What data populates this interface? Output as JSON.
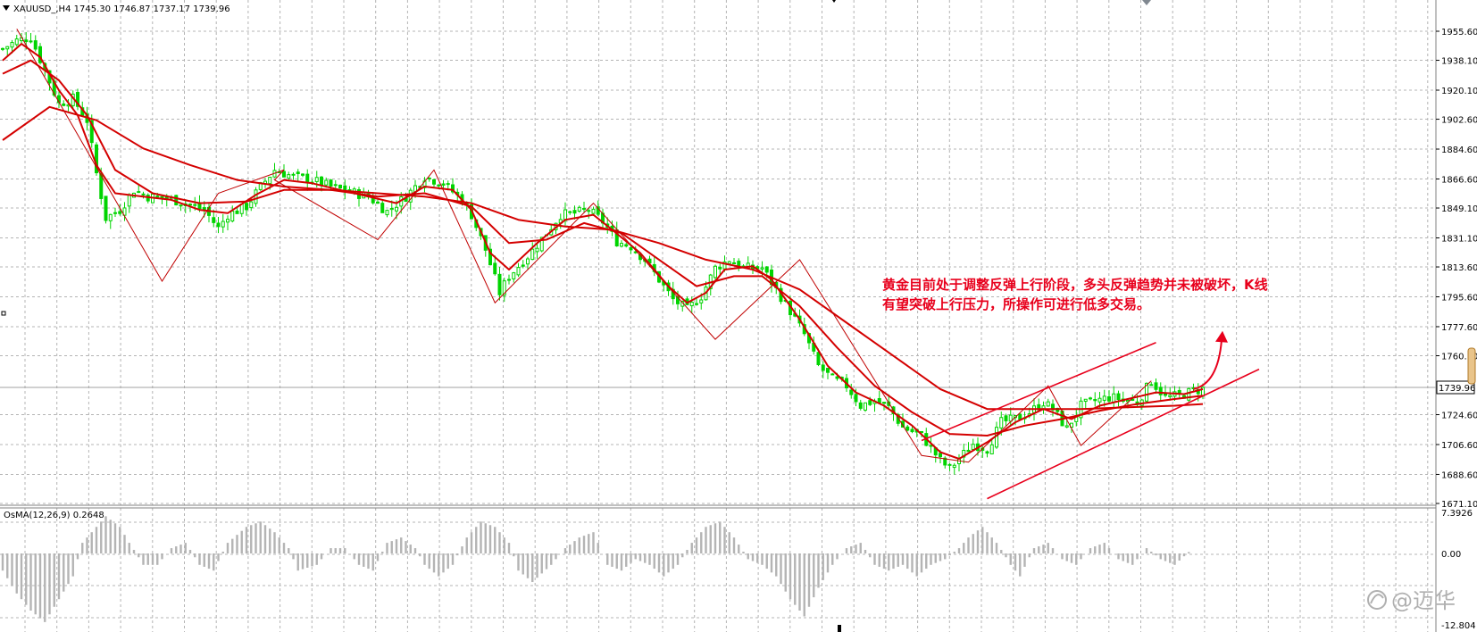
{
  "symbol_header": "XAUUSD_,H4  1745.30 1746.87 1737.17 1739.96",
  "indicator_header": "OsMA(12,26,9) 0.2648",
  "current_price_label": "1739.96",
  "annotation": {
    "line1": "黄金目前处于调整反弹上行阶段，多头反弹趋势并未被破坏，K线",
    "line2": "有望突破上行压力，所操作可进行低多交易。"
  },
  "watermark": "@迈华",
  "colors": {
    "bull": "#00d400",
    "bear": "#00d400",
    "ma": "#d40000",
    "annotation": "#e8001c",
    "grid": "#b4b4b4",
    "osma": "#b4b4b4"
  },
  "chart_data": [
    {
      "type": "candlestick",
      "title": "XAUUSD_,H4",
      "y_ticks": [
        1955.6,
        1938.1,
        1920.1,
        1902.6,
        1884.6,
        1866.6,
        1849.1,
        1831.1,
        1813.6,
        1795.6,
        1777.6,
        1760.1,
        1724.6,
        1706.6,
        1688.6,
        1671.1
      ],
      "y_tick_labels": [
        "1955.60",
        "1938.10",
        "1920.10",
        "1902.60",
        "1884.60",
        "1866.60",
        "1849.10",
        "1831.10",
        "1813.60",
        "1795.60",
        "1777.60",
        "1760.10",
        "1724.60",
        "1706.60",
        "1688.60",
        "1671.10"
      ],
      "ylim": [
        1667,
        1970
      ],
      "grid": true,
      "last_price": 1739.96,
      "close_path": [
        [
          0,
          1945
        ],
        [
          3,
          1950
        ],
        [
          6,
          1952
        ],
        [
          9,
          1932
        ],
        [
          12,
          1912
        ],
        [
          15,
          1915
        ],
        [
          18,
          1902
        ],
        [
          20,
          1870
        ],
        [
          22,
          1843
        ],
        [
          25,
          1848
        ],
        [
          28,
          1860
        ],
        [
          31,
          1856
        ],
        [
          35,
          1855
        ],
        [
          39,
          1852
        ],
        [
          43,
          1848
        ],
        [
          46,
          1837
        ],
        [
          48,
          1845
        ],
        [
          52,
          1850
        ],
        [
          55,
          1862
        ],
        [
          58,
          1872
        ],
        [
          62,
          1868
        ],
        [
          66,
          1866
        ],
        [
          70,
          1862
        ],
        [
          74,
          1859
        ],
        [
          78,
          1856
        ],
        [
          82,
          1847
        ],
        [
          86,
          1856
        ],
        [
          90,
          1868
        ],
        [
          94,
          1864
        ],
        [
          98,
          1854
        ],
        [
          100,
          1845
        ],
        [
          103,
          1824
        ],
        [
          106,
          1798
        ],
        [
          108,
          1808
        ],
        [
          112,
          1820
        ],
        [
          116,
          1834
        ],
        [
          119,
          1845
        ],
        [
          122,
          1846
        ],
        [
          125,
          1848
        ],
        [
          128,
          1841
        ],
        [
          131,
          1829
        ],
        [
          134,
          1826
        ],
        [
          137,
          1818
        ],
        [
          140,
          1806
        ],
        [
          143,
          1794
        ],
        [
          146,
          1788
        ],
        [
          149,
          1796
        ],
        [
          152,
          1813
        ],
        [
          155,
          1818
        ],
        [
          158,
          1813
        ],
        [
          162,
          1813
        ],
        [
          165,
          1800
        ],
        [
          168,
          1787
        ],
        [
          171,
          1773
        ],
        [
          174,
          1754
        ],
        [
          177,
          1746
        ],
        [
          180,
          1742
        ],
        [
          183,
          1730
        ],
        [
          186,
          1733
        ],
        [
          189,
          1729
        ],
        [
          192,
          1717
        ],
        [
          196,
          1712
        ],
        [
          200,
          1697
        ],
        [
          202,
          1692
        ],
        [
          204,
          1698
        ],
        [
          207,
          1707
        ],
        [
          210,
          1704
        ],
        [
          213,
          1720
        ],
        [
          216,
          1722
        ],
        [
          219,
          1726
        ],
        [
          222,
          1732
        ],
        [
          224,
          1728
        ],
        [
          227,
          1716
        ],
        [
          230,
          1730
        ],
        [
          233,
          1733
        ],
        [
          236,
          1735
        ],
        [
          239,
          1734
        ],
        [
          242,
          1732
        ],
        [
          245,
          1745
        ],
        [
          248,
          1735
        ],
        [
          251,
          1736
        ],
        [
          254,
          1739
        ],
        [
          256,
          1740
        ]
      ],
      "series": [
        {
          "name": "",
          "kind": "ma-fast",
          "points": [
            [
              0,
              1938
            ],
            [
              4,
              1948
            ],
            [
              8,
              1940
            ],
            [
              12,
              1920
            ],
            [
              16,
              1905
            ],
            [
              20,
              1875
            ],
            [
              24,
              1858
            ],
            [
              30,
              1856
            ],
            [
              36,
              1854
            ],
            [
              42,
              1848
            ],
            [
              48,
              1846
            ],
            [
              54,
              1857
            ],
            [
              60,
              1866
            ],
            [
              66,
              1864
            ],
            [
              72,
              1860
            ],
            [
              78,
              1856
            ],
            [
              84,
              1852
            ],
            [
              90,
              1862
            ],
            [
              96,
              1860
            ],
            [
              100,
              1848
            ],
            [
              104,
              1822
            ],
            [
              108,
              1812
            ],
            [
              114,
              1828
            ],
            [
              120,
              1842
            ],
            [
              126,
              1845
            ],
            [
              130,
              1836
            ],
            [
              136,
              1822
            ],
            [
              142,
              1802
            ],
            [
              146,
              1792
            ],
            [
              150,
              1798
            ],
            [
              154,
              1812
            ],
            [
              160,
              1814
            ],
            [
              164,
              1806
            ],
            [
              170,
              1782
            ],
            [
              176,
              1754
            ],
            [
              182,
              1738
            ],
            [
              188,
              1730
            ],
            [
              194,
              1718
            ],
            [
              200,
              1702
            ],
            [
              204,
              1698
            ],
            [
              210,
              1708
            ],
            [
              216,
              1720
            ],
            [
              222,
              1728
            ],
            [
              228,
              1722
            ],
            [
              234,
              1730
            ],
            [
              240,
              1734
            ],
            [
              246,
              1738
            ],
            [
              252,
              1737
            ],
            [
              256,
              1740
            ]
          ]
        },
        {
          "name": "",
          "kind": "ma-mid",
          "points": [
            [
              0,
              1930
            ],
            [
              6,
              1938
            ],
            [
              12,
              1926
            ],
            [
              18,
              1905
            ],
            [
              24,
              1872
            ],
            [
              32,
              1858
            ],
            [
              42,
              1852
            ],
            [
              52,
              1853
            ],
            [
              60,
              1860
            ],
            [
              70,
              1860
            ],
            [
              80,
              1856
            ],
            [
              90,
              1858
            ],
            [
              100,
              1850
            ],
            [
              108,
              1828
            ],
            [
              116,
              1830
            ],
            [
              124,
              1840
            ],
            [
              132,
              1834
            ],
            [
              140,
              1818
            ],
            [
              148,
              1802
            ],
            [
              156,
              1808
            ],
            [
              162,
              1808
            ],
            [
              170,
              1790
            ],
            [
              178,
              1765
            ],
            [
              186,
              1742
            ],
            [
              194,
              1726
            ],
            [
              202,
              1713
            ],
            [
              210,
              1712
            ],
            [
              218,
              1718
            ],
            [
              226,
              1722
            ],
            [
              234,
              1727
            ],
            [
              242,
              1731
            ],
            [
              250,
              1734
            ],
            [
              256,
              1736
            ]
          ]
        },
        {
          "name": "",
          "kind": "ma-slow",
          "points": [
            [
              0,
              1890
            ],
            [
              10,
              1910
            ],
            [
              20,
              1902
            ],
            [
              30,
              1885
            ],
            [
              40,
              1875
            ],
            [
              50,
              1866
            ],
            [
              60,
              1862
            ],
            [
              70,
              1860
            ],
            [
              80,
              1858
            ],
            [
              90,
              1856
            ],
            [
              100,
              1852
            ],
            [
              110,
              1842
            ],
            [
              120,
              1838
            ],
            [
              130,
              1836
            ],
            [
              140,
              1828
            ],
            [
              150,
              1818
            ],
            [
              160,
              1812
            ],
            [
              170,
              1800
            ],
            [
              180,
              1780
            ],
            [
              190,
              1760
            ],
            [
              200,
              1740
            ],
            [
              210,
              1728
            ],
            [
              220,
              1728
            ],
            [
              230,
              1728
            ],
            [
              240,
              1729
            ],
            [
              250,
              1730
            ],
            [
              256,
              1731
            ]
          ]
        }
      ],
      "trendlines": [
        {
          "kind": "zigzag",
          "points": [
            [
              3,
              1957
            ],
            [
              34,
              1805
            ],
            [
              46,
              1858
            ],
            [
              60,
              1872
            ],
            [
              58,
              1866
            ],
            [
              80,
              1830
            ],
            [
              92,
              1872
            ],
            [
              105,
              1792
            ],
            [
              126,
              1852
            ],
            [
              152,
              1770
            ],
            [
              170,
              1818
            ],
            [
              196,
              1700
            ],
            [
              206,
              1696
            ],
            [
              223,
              1742
            ],
            [
              230,
              1706
            ],
            [
              245,
              1745
            ]
          ]
        },
        {
          "kind": "channel-upper",
          "points": [
            [
              196,
              1709
            ],
            [
              246,
              1768
            ]
          ]
        },
        {
          "kind": "channel-lower",
          "points": [
            [
              210,
              1674
            ],
            [
              268,
              1752
            ]
          ]
        }
      ],
      "arrow": {
        "from": [
          254,
          1740
        ],
        "to": [
          260,
          1775
        ]
      }
    },
    {
      "type": "bar",
      "title": "OsMA(12,26,9)",
      "y_tick_labels": [
        "7.3926",
        "0.00",
        "-12.804"
      ],
      "ylim": [
        -12.804,
        7.3926
      ],
      "last_value": 0.2648,
      "profile": [
        [
          0,
          -3
        ],
        [
          3,
          -7
        ],
        [
          6,
          -10
        ],
        [
          9,
          -12
        ],
        [
          12,
          -8
        ],
        [
          15,
          -4
        ],
        [
          17,
          2
        ],
        [
          20,
          5
        ],
        [
          22,
          7
        ],
        [
          25,
          5
        ],
        [
          27,
          2
        ],
        [
          30,
          -2
        ],
        [
          33,
          -2
        ],
        [
          36,
          1
        ],
        [
          39,
          2
        ],
        [
          42,
          -2
        ],
        [
          45,
          -3
        ],
        [
          48,
          2
        ],
        [
          52,
          5
        ],
        [
          55,
          6
        ],
        [
          58,
          4
        ],
        [
          61,
          1
        ],
        [
          63,
          -3
        ],
        [
          67,
          -2
        ],
        [
          70,
          1
        ],
        [
          73,
          1
        ],
        [
          76,
          -2
        ],
        [
          79,
          -3
        ],
        [
          82,
          2
        ],
        [
          85,
          3
        ],
        [
          88,
          1
        ],
        [
          90,
          -2
        ],
        [
          93,
          -4
        ],
        [
          96,
          -2
        ],
        [
          99,
          3
        ],
        [
          102,
          6
        ],
        [
          105,
          5
        ],
        [
          108,
          2
        ],
        [
          110,
          -3
        ],
        [
          113,
          -5
        ],
        [
          117,
          -2
        ],
        [
          120,
          1
        ],
        [
          123,
          3
        ],
        [
          126,
          4
        ],
        [
          129,
          -2
        ],
        [
          132,
          -3
        ],
        [
          135,
          -1
        ],
        [
          138,
          -2
        ],
        [
          141,
          -4
        ],
        [
          144,
          -2
        ],
        [
          147,
          2
        ],
        [
          150,
          5
        ],
        [
          153,
          6
        ],
        [
          156,
          3
        ],
        [
          159,
          -1
        ],
        [
          162,
          -2
        ],
        [
          165,
          -4
        ],
        [
          168,
          -8
        ],
        [
          171,
          -11
        ],
        [
          174,
          -6
        ],
        [
          177,
          -2
        ],
        [
          180,
          1
        ],
        [
          183,
          2
        ],
        [
          186,
          -2
        ],
        [
          189,
          -3
        ],
        [
          192,
          -2
        ],
        [
          195,
          -4
        ],
        [
          198,
          -2
        ],
        [
          201,
          -1
        ],
        [
          204,
          1
        ],
        [
          206,
          3
        ],
        [
          209,
          5
        ],
        [
          212,
          2
        ],
        [
          215,
          -2
        ],
        [
          217,
          -4
        ],
        [
          220,
          1
        ],
        [
          223,
          2
        ],
        [
          226,
          -1
        ],
        [
          229,
          -2
        ],
        [
          232,
          1
        ],
        [
          235,
          2
        ],
        [
          238,
          -1
        ],
        [
          241,
          -2
        ],
        [
          244,
          1
        ],
        [
          247,
          -1
        ],
        [
          250,
          -2
        ],
        [
          253,
          0.2648
        ]
      ]
    }
  ]
}
